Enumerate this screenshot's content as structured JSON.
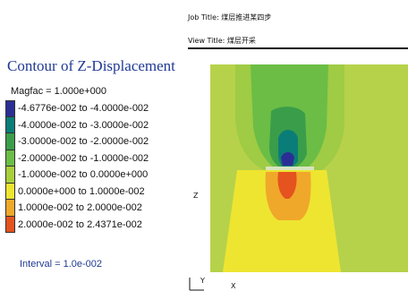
{
  "header": {
    "job_title": "Job Title: 煤层推进某四步",
    "view_title": "View Title: 煤层开采"
  },
  "legend": {
    "title": "Contour of Z-Displacement",
    "magfac": "Magfac =  1.000e+000",
    "ranges": [
      {
        "label": "-4.6776e-002 to -4.0000e-002",
        "color": "#2b2f95"
      },
      {
        "label": "-4.0000e-002 to -3.0000e-002",
        "color": "#0b7d78"
      },
      {
        "label": "-3.0000e-002 to -2.0000e-002",
        "color": "#3a9d4a"
      },
      {
        "label": "-2.0000e-002 to -1.0000e-002",
        "color": "#6bbd45"
      },
      {
        "label": "-1.0000e-002 to  0.0000e+000",
        "color": "#a9cf3a"
      },
      {
        "label": " 0.0000e+000 to  1.0000e-002",
        "color": "#eee531"
      },
      {
        "label": " 1.0000e-002 to  2.0000e-002",
        "color": "#f0a82a"
      },
      {
        "label": " 2.0000e-002 to  2.4371e-002",
        "color": "#e5531f"
      }
    ],
    "interval": "Interval =  1.0e-002"
  },
  "axes": {
    "z": "Z",
    "y": "Y",
    "x": "X"
  }
}
